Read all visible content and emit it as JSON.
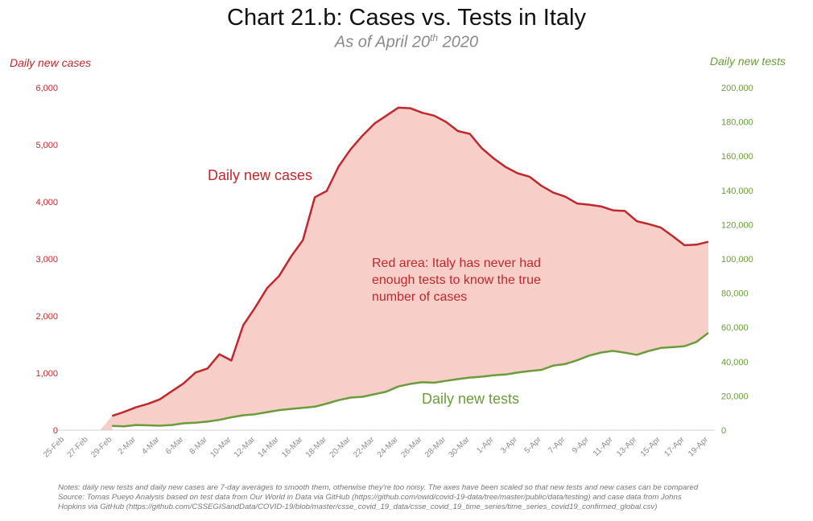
{
  "title": "Chart 21.b: Cases vs. Tests in Italy",
  "subtitle": {
    "main": "As of April 20",
    "sup": "th",
    "year": " 2020"
  },
  "notes": [
    "Notes: daily new tests and daily new cases are 7-day averages to smooth them, otherwise they're too noisy. The axes have been scaled so that new tests and new cases can be compared",
    "Source: Tomas Pueyo Analysis based on test data from Our World in Data via GitHub (https://github.com/owid/covid-19-data/tree/master/public/data/testing) and case data from Johns",
    "Hopkins via GitHub (https://github.com/CSSEGISandData/COVID-19/blob/master/csse_covid_19_data/csse_covid_19_time_series/time_series_covid19_confirmed_global.csv)"
  ],
  "colors": {
    "cases": "#c0282d",
    "tests": "#6a9c3a",
    "area": "#f7cfc8",
    "tick_left": "#c0282d",
    "tick_right": "#6a9c3a"
  },
  "chart_data": {
    "type": "line",
    "title": "Chart 21.b: Cases vs. Tests in Italy",
    "subtitle": "As of April 20th 2020",
    "ylabel": "Daily new cases",
    "y2label": "Daily new tests",
    "ylim": [
      0,
      6000
    ],
    "y2lim": [
      0,
      200000
    ],
    "yticks": [
      "0",
      "1,000",
      "2,000",
      "3,000",
      "4,000",
      "5,000",
      "6,000"
    ],
    "y2ticks": [
      "0",
      "20,000",
      "40,000",
      "60,000",
      "80,000",
      "100,000",
      "120,000",
      "140,000",
      "160,000",
      "180,000",
      "200,000"
    ],
    "x_tick_labels": [
      "25-Feb",
      "27-Feb",
      "29-Feb",
      "2-Mar",
      "4-Mar",
      "6-Mar",
      "8-Mar",
      "10-Mar",
      "12-Mar",
      "14-Mar",
      "16-Mar",
      "18-Mar",
      "20-Mar",
      "22-Mar",
      "24-Mar",
      "26-Mar",
      "28-Mar",
      "30-Mar",
      "1-Apr",
      "3-Apr",
      "5-Apr",
      "7-Apr",
      "9-Apr",
      "11-Apr",
      "13-Apr",
      "15-Apr",
      "17-Apr",
      "19-Apr"
    ],
    "grid": false,
    "legend": "none",
    "series": [
      {
        "name": "Daily new cases",
        "axis": "left",
        "dates": [
          "29-Feb",
          "1-Mar",
          "2-Mar",
          "3-Mar",
          "4-Mar",
          "5-Mar",
          "6-Mar",
          "7-Mar",
          "8-Mar",
          "9-Mar",
          "10-Mar",
          "11-Mar",
          "12-Mar",
          "13-Mar",
          "14-Mar",
          "15-Mar",
          "16-Mar",
          "17-Mar",
          "18-Mar",
          "19-Mar",
          "20-Mar",
          "21-Mar",
          "22-Mar",
          "23-Mar",
          "24-Mar",
          "25-Mar",
          "26-Mar",
          "27-Mar",
          "28-Mar",
          "29-Mar",
          "30-Mar",
          "31-Mar",
          "1-Apr",
          "2-Apr",
          "3-Apr",
          "4-Apr",
          "5-Apr",
          "6-Apr",
          "7-Apr",
          "8-Apr",
          "9-Apr",
          "10-Apr",
          "11-Apr",
          "12-Apr",
          "13-Apr",
          "14-Apr",
          "15-Apr",
          "16-Apr",
          "17-Apr",
          "18-Apr",
          "19-Apr"
        ],
        "values": [
          250,
          320,
          400,
          460,
          540,
          680,
          820,
          1010,
          1080,
          1330,
          1220,
          1840,
          2150,
          2490,
          2700,
          3040,
          3330,
          4080,
          4190,
          4620,
          4920,
          5160,
          5370,
          5510,
          5650,
          5640,
          5560,
          5510,
          5400,
          5240,
          5190,
          4940,
          4760,
          4610,
          4500,
          4440,
          4280,
          4160,
          4090,
          3970,
          3950,
          3920,
          3850,
          3840,
          3660,
          3610,
          3550,
          3400,
          3240,
          3250,
          3300
        ]
      },
      {
        "name": "Daily new tests",
        "axis": "right",
        "dates": [
          "29-Feb",
          "1-Mar",
          "2-Mar",
          "3-Mar",
          "4-Mar",
          "5-Mar",
          "6-Mar",
          "7-Mar",
          "8-Mar",
          "9-Mar",
          "10-Mar",
          "11-Mar",
          "12-Mar",
          "13-Mar",
          "14-Mar",
          "15-Mar",
          "16-Mar",
          "17-Mar",
          "18-Mar",
          "19-Mar",
          "20-Mar",
          "21-Mar",
          "22-Mar",
          "23-Mar",
          "24-Mar",
          "25-Mar",
          "26-Mar",
          "27-Mar",
          "28-Mar",
          "29-Mar",
          "30-Mar",
          "31-Mar",
          "1-Apr",
          "2-Apr",
          "3-Apr",
          "4-Apr",
          "5-Apr",
          "6-Apr",
          "7-Apr",
          "8-Apr",
          "9-Apr",
          "10-Apr",
          "11-Apr",
          "12-Apr",
          "13-Apr",
          "14-Apr",
          "15-Apr",
          "16-Apr",
          "17-Apr",
          "18-Apr",
          "19-Apr"
        ],
        "values": [
          2500,
          2200,
          3000,
          2800,
          2600,
          3000,
          4000,
          4300,
          5000,
          6000,
          7500,
          8700,
          9300,
          10500,
          11700,
          12400,
          13000,
          13700,
          15500,
          17500,
          19000,
          19500,
          21000,
          22500,
          25500,
          27000,
          28000,
          27700,
          28800,
          29800,
          30700,
          31200,
          32000,
          32500,
          33600,
          34500,
          35200,
          37700,
          38600,
          40800,
          43500,
          45300,
          46300,
          45200,
          44000,
          46200,
          48000,
          48500,
          49000,
          51500,
          56800
        ]
      }
    ],
    "annotations": [
      {
        "text": "Daily new cases",
        "color": "#c0282d"
      },
      {
        "text": "Red area: Italy has never had\nenough tests to know the true\nnumber of cases",
        "color": "#c0282d"
      },
      {
        "text": "Daily new tests",
        "color": "#6a9c3a"
      }
    ]
  }
}
